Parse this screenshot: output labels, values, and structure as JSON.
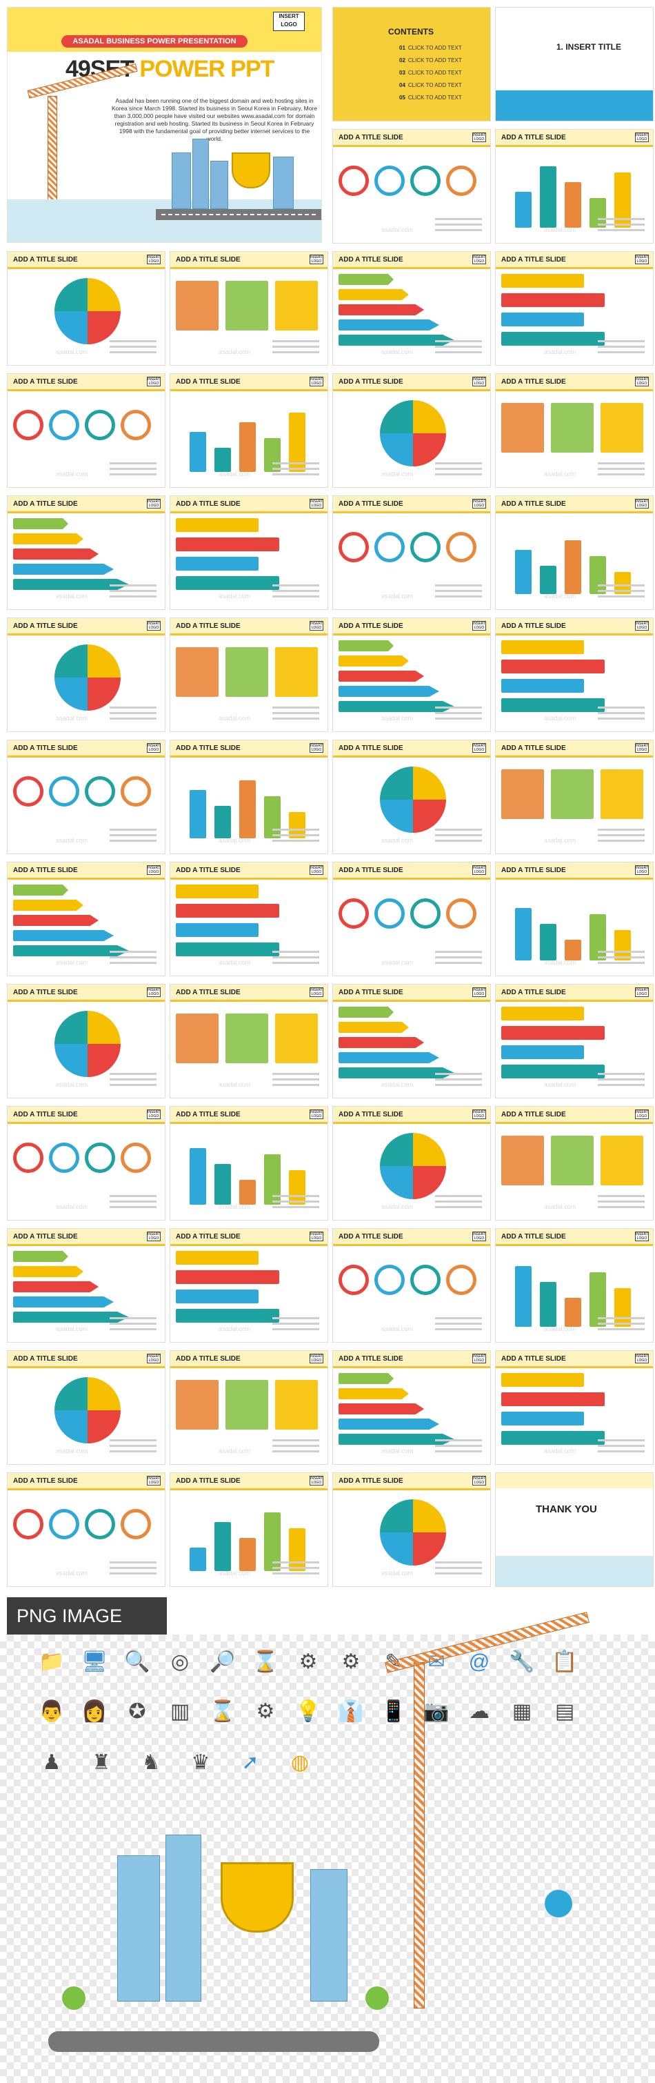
{
  "hero": {
    "logo": "INSERT\nLOGO",
    "ribbon": "ASADAL BUSINESS POWER PRESENTATION",
    "title_a": "49SET",
    "title_b": "POWER PPT",
    "description": "Asadal has been running one of the biggest domain and web hosting sites in Korea since March 1998. Started its business in Seoul Korea in February, More than 3,000,000 people have visited our websites www.asadal.com for domain registration and web hosting. Started its business in Seoul Korea in February 1998 with the fundamental goal of providing better internet services to the world."
  },
  "contents": {
    "title": "CONTENTS",
    "items": [
      {
        "num": "01",
        "label": "CLICK TO ADD TEXT"
      },
      {
        "num": "02",
        "label": "CLICK TO ADD TEXT"
      },
      {
        "num": "03",
        "label": "CLICK TO ADD TEXT"
      },
      {
        "num": "04",
        "label": "CLICK TO ADD TEXT"
      },
      {
        "num": "05",
        "label": "CLICK TO ADD TEXT"
      }
    ]
  },
  "insert_slide": {
    "title": "1. INSERT TITLE"
  },
  "slide_title": "ADD A TITLE SLIDE",
  "logo_small": "INSERT LOGO",
  "watermark": "asadal.com",
  "thanks": {
    "title": "THANK YOU"
  },
  "png_label": "PNG IMAGE",
  "palette": {
    "yellow": "#f6c000",
    "red": "#e8433c",
    "blue": "#2ea8d8",
    "teal": "#1fa3a0",
    "orange": "#e9873a"
  },
  "icons": [
    "folder-icon",
    "monitor-icon",
    "search-icon",
    "target-icon",
    "magnifier-icon",
    "hourglass-icon",
    "gear-icon",
    "gears-icon",
    "pen-tablet-icon",
    "mail-icon",
    "at-sign-icon",
    "tools-icon",
    "clipboard-icon",
    "businessman-icon",
    "businesswoman-icon",
    "award-icon",
    "chart-icon",
    "hourglass-icon",
    "gears-icon",
    "lightbulb-icon",
    "shirt-icon",
    "phone-icon",
    "camera-icon",
    "cloud-gears-icon",
    "calendar-icon",
    "notebook-icon",
    "speaker-icon",
    "meeting-icon",
    "podium-icon",
    "winner-icon",
    "arrow-up-icon",
    "coins-icon"
  ]
}
